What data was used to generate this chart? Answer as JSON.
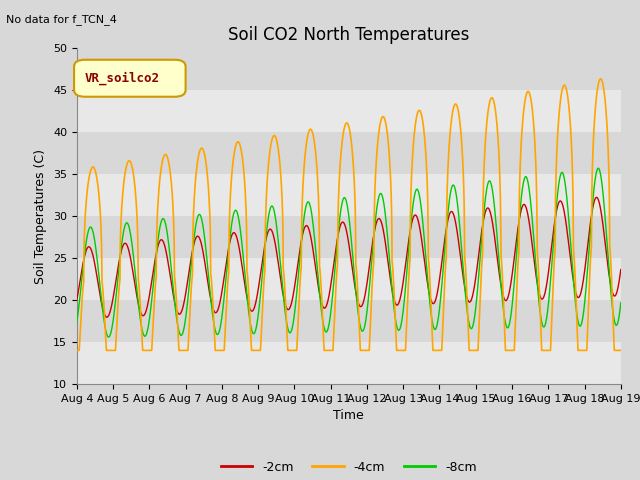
{
  "title": "Soil CO2 North Temperatures",
  "subtitle": "No data for f_TCN_4",
  "ylabel": "Soil Temperatures (C)",
  "xlabel": "Time",
  "ylim": [
    10,
    50
  ],
  "x_tick_labels": [
    "Aug 4",
    "Aug 5",
    "Aug 6",
    "Aug 7",
    "Aug 8",
    "Aug 9",
    "Aug 10",
    "Aug 11",
    "Aug 12",
    "Aug 13",
    "Aug 14",
    "Aug 15",
    "Aug 16",
    "Aug 17",
    "Aug 18",
    "Aug 19"
  ],
  "series_labels": [
    "-2cm",
    "-4cm",
    "-8cm"
  ],
  "series_colors": [
    "#cc0000",
    "#ffa500",
    "#00cc00"
  ],
  "legend_label": "VR_soilco2",
  "bg_color": "#d8d8d8",
  "plot_bg_color": "#f0f0f0",
  "grid_color": "#ffffff",
  "title_fontsize": 12,
  "label_fontsize": 9,
  "tick_fontsize": 8,
  "legend_fontsize": 9,
  "band_colors": [
    "#e8e8e8",
    "#d8d8d8"
  ]
}
